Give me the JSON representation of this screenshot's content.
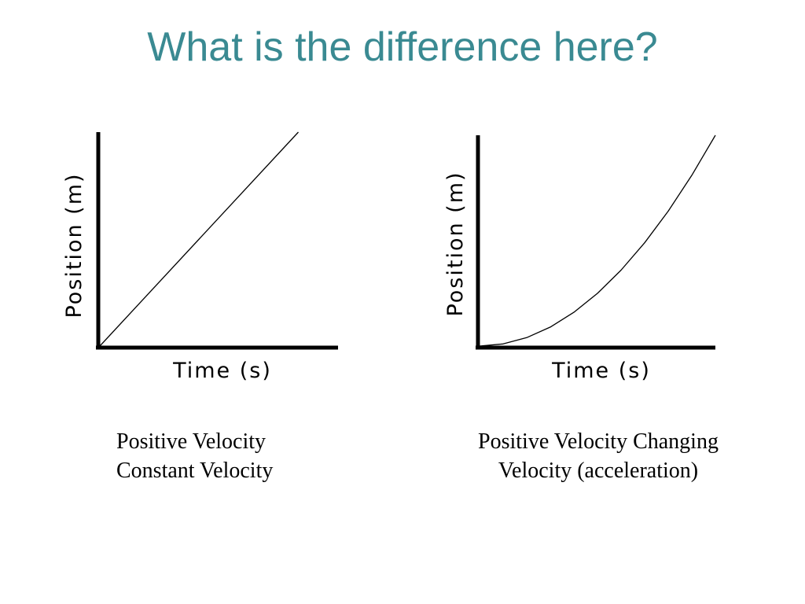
{
  "slide": {
    "title": "What is the difference here?",
    "title_color": "#3a8a92"
  },
  "chart_data": [
    {
      "type": "line",
      "xlabel": "Time (s)",
      "ylabel": "Position (m)",
      "series": [
        {
          "x": [
            0,
            1
          ],
          "y": [
            0,
            1
          ]
        }
      ],
      "xlim": [
        0,
        1.2
      ],
      "ylim": [
        0,
        1.0
      ],
      "grid": false,
      "caption": [
        "Positive Velocity",
        "Constant Velocity"
      ]
    },
    {
      "type": "line",
      "xlabel": "Time (s)",
      "ylabel": "Position (m)",
      "series": [
        {
          "x": [
            0,
            0.1,
            0.2,
            0.3,
            0.4,
            0.5,
            0.6,
            0.7,
            0.8,
            0.9,
            1.0
          ],
          "y": [
            0,
            0.01,
            0.04,
            0.09,
            0.16,
            0.25,
            0.36,
            0.49,
            0.64,
            0.81,
            1.0
          ]
        }
      ],
      "xlim": [
        0,
        1.0
      ],
      "ylim": [
        0,
        1.0
      ],
      "grid": false,
      "caption": [
        "Positive Velocity Changing",
        "Velocity (acceleration)"
      ]
    }
  ]
}
